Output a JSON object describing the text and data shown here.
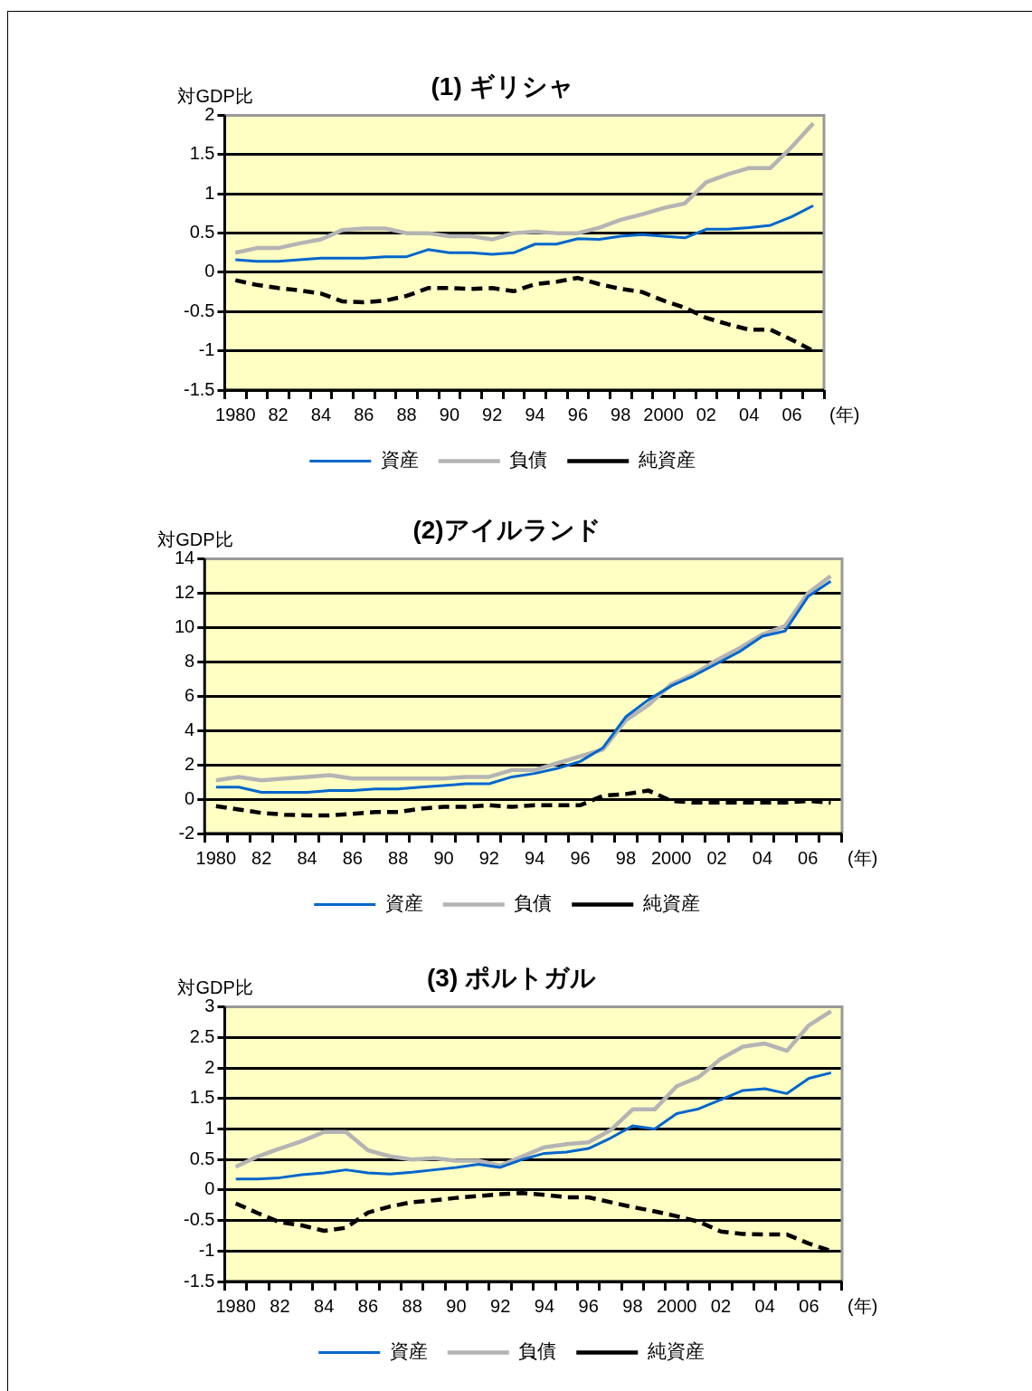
{
  "chart_data": [
    {
      "type": "line",
      "title": "(1) ギリシャ",
      "ylabel": "対GDP比",
      "xlabel": "(年)",
      "categories": [
        "1980",
        null,
        "82",
        null,
        "84",
        null,
        "86",
        null,
        "88",
        null,
        "90",
        null,
        "92",
        null,
        "94",
        null,
        "96",
        null,
        "98",
        null,
        "2000",
        null,
        "02",
        null,
        "04",
        null,
        "06",
        null
      ],
      "series": [
        {
          "name": "資産",
          "color": "#0066cc",
          "line_style": "solid",
          "values": [
            0.16,
            0.14,
            0.14,
            0.16,
            0.18,
            0.18,
            0.18,
            0.2,
            0.2,
            0.29,
            0.25,
            0.25,
            0.23,
            0.25,
            0.36,
            0.36,
            0.43,
            0.42,
            0.46,
            0.48,
            0.46,
            0.44,
            0.55,
            0.55,
            0.57,
            0.6,
            0.71,
            0.85
          ]
        },
        {
          "name": "負債",
          "color": "#b4b4b4",
          "line_style": "solid",
          "values": [
            0.25,
            0.31,
            0.31,
            0.37,
            0.42,
            0.54,
            0.56,
            0.56,
            0.5,
            0.5,
            0.46,
            0.46,
            0.42,
            0.5,
            0.52,
            0.5,
            0.5,
            0.57,
            0.67,
            0.74,
            0.82,
            0.88,
            1.15,
            1.25,
            1.33,
            1.33,
            1.6,
            1.9
          ]
        },
        {
          "name": "純資産",
          "color": "#000000",
          "line_style": "dashed",
          "values": [
            -0.1,
            -0.16,
            -0.2,
            -0.23,
            -0.27,
            -0.37,
            -0.38,
            -0.36,
            -0.3,
            -0.2,
            -0.2,
            -0.21,
            -0.2,
            -0.24,
            -0.15,
            -0.12,
            -0.07,
            -0.15,
            -0.21,
            -0.25,
            -0.36,
            -0.45,
            -0.58,
            -0.66,
            -0.73,
            -0.73,
            -0.86,
            -1.0
          ]
        }
      ],
      "ylim": [
        -1.5,
        2
      ],
      "yticks": [
        -1.5,
        -1,
        -0.5,
        0,
        0.5,
        1,
        1.5,
        2
      ],
      "grid": "y",
      "legend": "bottom"
    },
    {
      "type": "line",
      "title": "(2)アイルランド",
      "ylabel": "対GDP比",
      "xlabel": "(年)",
      "categories": [
        "1980",
        null,
        "82",
        null,
        "84",
        null,
        "86",
        null,
        "88",
        null,
        "90",
        null,
        "92",
        null,
        "94",
        null,
        "96",
        null,
        "98",
        null,
        "2000",
        null,
        "02",
        null,
        "04",
        null,
        "06",
        null
      ],
      "series": [
        {
          "name": "資産",
          "color": "#0066cc",
          "line_style": "solid",
          "values": [
            0.7,
            0.7,
            0.4,
            0.4,
            0.4,
            0.5,
            0.5,
            0.6,
            0.6,
            0.7,
            0.8,
            0.9,
            0.9,
            1.3,
            1.5,
            1.8,
            2.2,
            3.0,
            4.8,
            5.8,
            6.6,
            7.2,
            7.9,
            8.6,
            9.5,
            9.8,
            11.8,
            12.7
          ]
        },
        {
          "name": "負債",
          "color": "#b4b4b4",
          "line_style": "solid",
          "values": [
            1.1,
            1.3,
            1.1,
            1.2,
            1.3,
            1.4,
            1.2,
            1.2,
            1.2,
            1.2,
            1.2,
            1.3,
            1.3,
            1.7,
            1.7,
            2.1,
            2.5,
            2.9,
            4.6,
            5.5,
            6.7,
            7.3,
            8.1,
            8.8,
            9.6,
            10.1,
            12.0,
            13.0
          ]
        },
        {
          "name": "純資産",
          "color": "#000000",
          "line_style": "dashed",
          "values": [
            -0.4,
            -0.6,
            -0.8,
            -0.9,
            -0.95,
            -0.95,
            -0.85,
            -0.75,
            -0.75,
            -0.55,
            -0.45,
            -0.45,
            -0.35,
            -0.45,
            -0.35,
            -0.35,
            -0.35,
            0.2,
            0.3,
            0.5,
            -0.1,
            -0.2,
            -0.2,
            -0.2,
            -0.2,
            -0.2,
            -0.1,
            -0.2
          ]
        }
      ],
      "ylim": [
        -2,
        14
      ],
      "yticks": [
        -2,
        0,
        2,
        4,
        6,
        8,
        10,
        12,
        14
      ],
      "grid": "y",
      "legend": "bottom"
    },
    {
      "type": "line",
      "title": "(3) ポルトガル",
      "ylabel": "対GDP比",
      "xlabel": "(年)",
      "categories": [
        "1980",
        null,
        "82",
        null,
        "84",
        null,
        "86",
        null,
        "88",
        null,
        "90",
        null,
        "92",
        null,
        "94",
        null,
        "96",
        null,
        "98",
        null,
        "2000",
        null,
        "02",
        null,
        "04",
        null,
        "06",
        null
      ],
      "series": [
        {
          "name": "資産",
          "color": "#0066cc",
          "line_style": "solid",
          "values": [
            0.18,
            0.18,
            0.2,
            0.25,
            0.28,
            0.33,
            0.28,
            0.26,
            0.29,
            0.33,
            0.37,
            0.42,
            0.37,
            0.5,
            0.6,
            0.62,
            0.68,
            0.85,
            1.05,
            1.0,
            1.25,
            1.33,
            1.48,
            1.63,
            1.66,
            1.58,
            1.83,
            1.92
          ]
        },
        {
          "name": "負債",
          "color": "#b4b4b4",
          "line_style": "solid",
          "values": [
            0.38,
            0.55,
            0.68,
            0.8,
            0.95,
            0.95,
            0.65,
            0.55,
            0.5,
            0.52,
            0.48,
            0.48,
            0.4,
            0.55,
            0.7,
            0.75,
            0.78,
            0.98,
            1.32,
            1.32,
            1.7,
            1.85,
            2.15,
            2.35,
            2.4,
            2.28,
            2.7,
            2.93
          ]
        },
        {
          "name": "純資産",
          "color": "#000000",
          "line_style": "dashed",
          "values": [
            -0.22,
            -0.38,
            -0.53,
            -0.58,
            -0.67,
            -0.62,
            -0.37,
            -0.27,
            -0.2,
            -0.17,
            -0.13,
            -0.1,
            -0.07,
            -0.05,
            -0.08,
            -0.12,
            -0.12,
            -0.2,
            -0.28,
            -0.35,
            -0.43,
            -0.52,
            -0.68,
            -0.72,
            -0.73,
            -0.73,
            -0.88,
            -1.0
          ]
        }
      ],
      "ylim": [
        -1.5,
        3
      ],
      "yticks": [
        -1.5,
        -1,
        -0.5,
        0,
        0.5,
        1,
        1.5,
        2,
        2.5,
        3
      ],
      "grid": "y",
      "legend": "bottom"
    }
  ]
}
